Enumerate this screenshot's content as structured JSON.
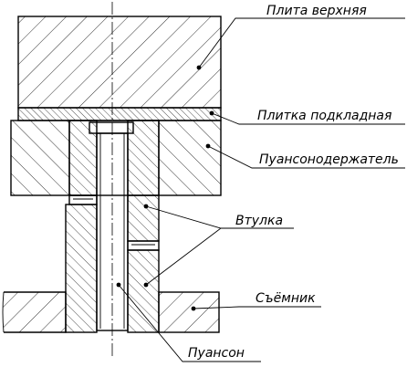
{
  "labels": {
    "top_plate": "Плита верхняя",
    "backing_plate": "Плитка подкладная",
    "punch_holder": "Пуансонодержатель",
    "bushing": "Втулка",
    "stripper": "Съёмник",
    "punch": "Пуансон"
  }
}
